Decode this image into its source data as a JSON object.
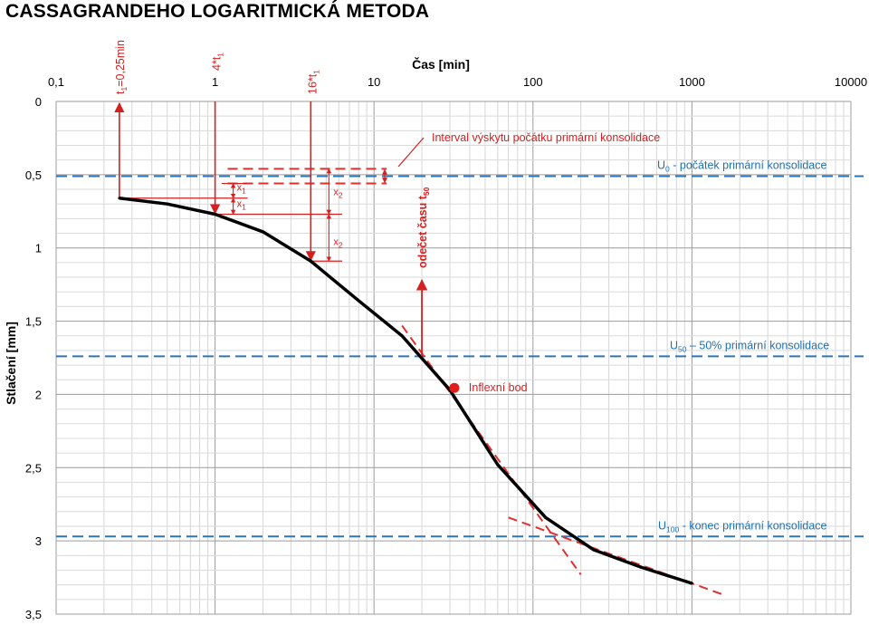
{
  "title": "CASSAGRANDEHO LOGARITMICKÁ METODA",
  "chart_data": {
    "type": "line",
    "xscale": "log",
    "xlabel": "Čas [min]",
    "ylabel": "Stlačení [mm]",
    "xlim": [
      0.1,
      10000
    ],
    "ylim": [
      0,
      3.5
    ],
    "y_inverted": true,
    "x_ticks": [
      "0,1",
      "1",
      "10",
      "100",
      "1000",
      "10000"
    ],
    "y_ticks": [
      "0",
      "0,5",
      "1",
      "1,5",
      "2",
      "2,5",
      "3",
      "3,5"
    ],
    "grid": true,
    "series": [
      {
        "color": "#000000",
        "x": [
          0.25,
          0.5,
          1,
          2,
          4,
          8,
          15,
          30,
          60,
          120,
          240,
          480,
          1000
        ],
        "y": [
          0.66,
          0.7,
          0.77,
          0.89,
          1.09,
          1.36,
          1.6,
          1.97,
          2.48,
          2.84,
          3.06,
          3.18,
          3.29
        ]
      }
    ],
    "reference_lines": [
      {
        "y": 0.51,
        "color": "#2e75b6",
        "label": "U₀ - počátek primární konsolidace"
      },
      {
        "y": 1.74,
        "color": "#2e75b6",
        "label": "U₅₀ – 50% primární konsolidace"
      },
      {
        "y": 2.97,
        "color": "#2e75b6",
        "label": "U₁₀₀ - konec primární konsolidace"
      }
    ],
    "tangent_lines": [
      {
        "color": "#e03030",
        "x": [
          15,
          200
        ],
        "y": [
          1.53,
          3.23
        ]
      },
      {
        "color": "#e03030",
        "x": [
          70,
          1600
        ],
        "y": [
          2.84,
          3.37
        ]
      }
    ],
    "interval_lines": [
      {
        "y": 0.46,
        "x": [
          1.2,
          12
        ]
      },
      {
        "y": 0.56,
        "x": [
          1.2,
          12
        ]
      }
    ],
    "markers": [
      {
        "x": 0.25,
        "label": "t₁=0,25min"
      },
      {
        "x": 1,
        "label": "4*t₁"
      },
      {
        "x": 4,
        "label": "16*t₁"
      }
    ],
    "inflection_point": {
      "x": 32,
      "y": 1.98,
      "label": "Inflexní bod"
    },
    "annotations": {
      "interval": "Interval výskytu počátku primární konsolidace",
      "read_t50": "odečet času t₅₀",
      "x1": "x₁",
      "x2": "x₂"
    }
  }
}
